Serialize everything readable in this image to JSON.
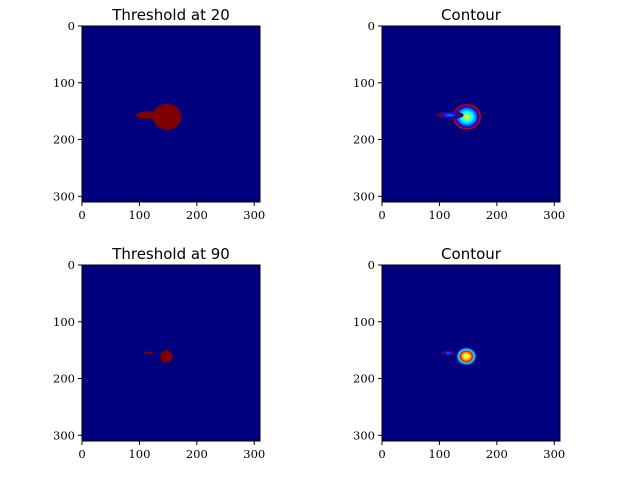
{
  "chart_data": [
    {
      "type": "heatmap",
      "title": "Threshold at 20",
      "xticks": [
        0,
        100,
        200,
        300
      ],
      "yticks": [
        0,
        100,
        200,
        300
      ],
      "xlim": [
        0,
        310
      ],
      "ylim": [
        310,
        0
      ],
      "colormap": "jet",
      "rendering": "threshold",
      "blobs": [
        {
          "cx": 148,
          "cy": 160,
          "rx": 25,
          "ry": 23,
          "value": 1.0
        },
        {
          "cx": 118,
          "cy": 157,
          "rx": 24,
          "ry": 7,
          "value": 1.0
        }
      ]
    },
    {
      "type": "heatmap",
      "title": "Contour",
      "xticks": [
        0,
        100,
        200,
        300
      ],
      "yticks": [
        0,
        100,
        200,
        300
      ],
      "xlim": [
        0,
        310
      ],
      "ylim": [
        310,
        0
      ],
      "colormap": "jet",
      "rendering": "contour",
      "blobs": [
        {
          "cx": 148,
          "cy": 160,
          "rx": 25,
          "ry": 23,
          "value": 1.0
        },
        {
          "cx": 118,
          "cy": 157,
          "rx": 24,
          "ry": 7,
          "value": 0.65
        }
      ]
    },
    {
      "type": "heatmap",
      "title": "Threshold at 90",
      "xticks": [
        0,
        100,
        200,
        300
      ],
      "yticks": [
        0,
        100,
        200,
        300
      ],
      "xlim": [
        0,
        310
      ],
      "ylim": [
        310,
        0
      ],
      "colormap": "jet",
      "rendering": "threshold",
      "blobs": [
        {
          "cx": 147,
          "cy": 161,
          "rx": 11,
          "ry": 11,
          "value": 1.0
        },
        {
          "cx": 116,
          "cy": 155,
          "rx": 8,
          "ry": 2.5,
          "value": 1.0
        }
      ]
    },
    {
      "type": "heatmap",
      "title": "Contour",
      "xticks": [
        0,
        100,
        200,
        300
      ],
      "yticks": [
        0,
        100,
        200,
        300
      ],
      "xlim": [
        0,
        310
      ],
      "ylim": [
        310,
        0
      ],
      "colormap": "jet",
      "rendering": "contour",
      "blobs": [
        {
          "cx": 147,
          "cy": 161,
          "rx": 18,
          "ry": 16,
          "value": 1.0
        },
        {
          "cx": 116,
          "cy": 155,
          "rx": 14,
          "ry": 4,
          "value": 0.55
        }
      ]
    }
  ],
  "colors": {
    "background": "#00007f",
    "threshold_fill": "#7f0000",
    "jet_stops": [
      "#00007f",
      "#0000ff",
      "#007fff",
      "#00ffff",
      "#7fff7f",
      "#ffff00",
      "#ff7f00",
      "#ff0000",
      "#7f0000"
    ]
  }
}
